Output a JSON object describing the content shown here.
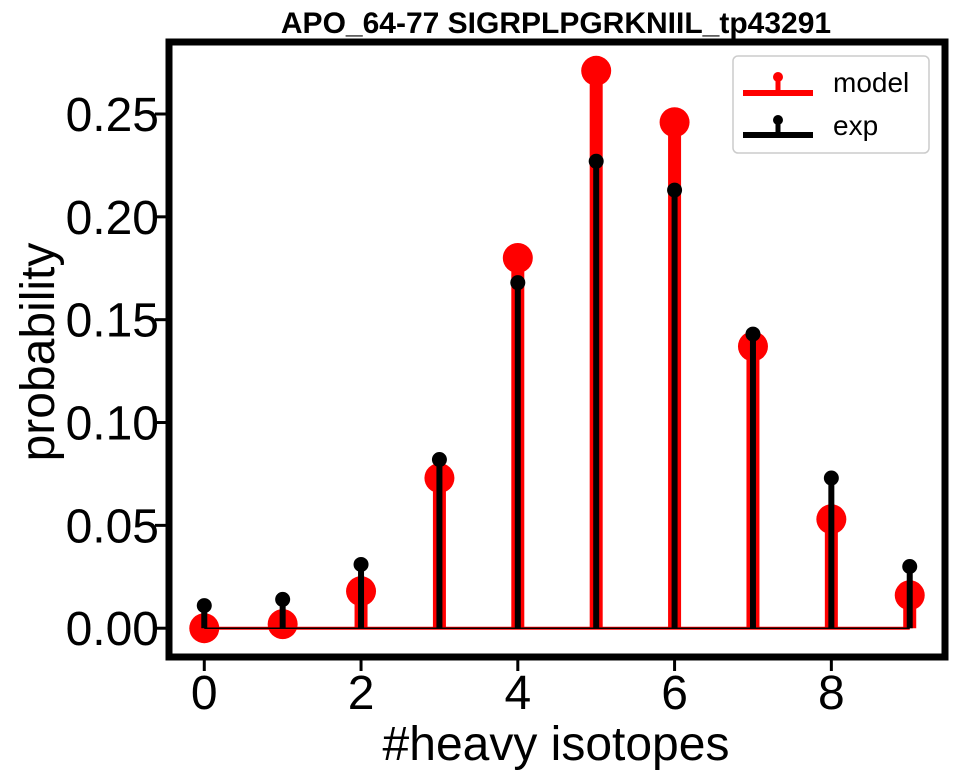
{
  "chart_data": {
    "type": "stem",
    "title": "APO_64-77 SIGRPLPGRKNIIL_tp43291",
    "xlabel": "#heavy isotopes",
    "ylabel": "probability",
    "x": [
      0,
      1,
      2,
      3,
      4,
      5,
      6,
      7,
      8,
      9
    ],
    "xlim": [
      -0.45,
      9.45
    ],
    "ylim": [
      -0.014,
      0.285
    ],
    "xticks": [
      "0",
      "2",
      "4",
      "6",
      "8"
    ],
    "xtick_values": [
      0,
      2,
      4,
      6,
      8
    ],
    "yticks": [
      "0.00",
      "0.05",
      "0.10",
      "0.15",
      "0.20",
      "0.25"
    ],
    "ytick_values": [
      0,
      0.05,
      0.1,
      0.15,
      0.2,
      0.25
    ],
    "grid": false,
    "legend_position": "top-right",
    "series": [
      {
        "name": "model",
        "color": "#ff0000",
        "values": [
          0.0,
          0.002,
          0.018,
          0.073,
          0.18,
          0.271,
          0.246,
          0.137,
          0.053,
          0.016
        ]
      },
      {
        "name": "exp",
        "color": "#000000",
        "values": [
          0.011,
          0.014,
          0.031,
          0.082,
          0.168,
          0.227,
          0.213,
          0.143,
          0.073,
          0.03
        ]
      }
    ]
  }
}
